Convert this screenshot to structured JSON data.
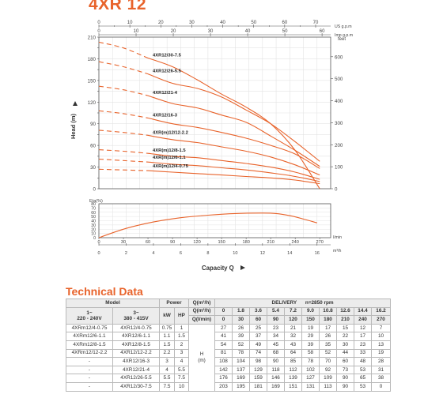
{
  "page_title": "4XR 12",
  "chart_data": [
    {
      "type": "line",
      "ylabel": "Head (m)",
      "ylim": [
        0,
        210
      ],
      "y_ticks": [
        0,
        15,
        30,
        45,
        60,
        75,
        90,
        105,
        120,
        135,
        150,
        165,
        180,
        195,
        210
      ],
      "y_labeled": [
        0,
        30,
        60,
        90,
        120,
        150,
        180,
        210
      ],
      "y2_label": "feet",
      "y2_ticks": [
        0,
        100,
        200,
        300,
        400,
        500,
        600
      ],
      "top_axis_us": {
        "label": "US g.p.m",
        "ticks": [
          0,
          10,
          20,
          30,
          40,
          50,
          60,
          70
        ]
      },
      "top_axis_imp": {
        "label": "Imp g.p.m",
        "ticks": [
          0,
          10,
          20,
          30,
          40,
          50,
          60
        ]
      },
      "xlim": [
        0,
        17
      ],
      "series": [
        {
          "name": "4XR12/30-7.5",
          "x": [
            0,
            1.8,
            3.6,
            5.4,
            7.2,
            9.0,
            10.8,
            12.6,
            14.4,
            16.2
          ],
          "values": [
            203,
            195,
            181,
            169,
            151,
            131,
            113,
            90,
            53,
            0
          ]
        },
        {
          "name": "4XR12/26-5.5",
          "x": [
            0,
            1.8,
            3.6,
            5.4,
            7.2,
            9.0,
            10.8,
            12.6,
            14.4,
            16.2
          ],
          "values": [
            176,
            169,
            159,
            146,
            139,
            127,
            109,
            90,
            65,
            38
          ]
        },
        {
          "name": "4XR12/21-4",
          "x": [
            0,
            1.8,
            3.6,
            5.4,
            7.2,
            9.0,
            10.8,
            12.6,
            14.4,
            16.2
          ],
          "values": [
            142,
            137,
            129,
            118,
            112,
            102,
            92,
            73,
            53,
            31
          ]
        },
        {
          "name": "4XR12/16-3",
          "x": [
            0,
            1.8,
            3.6,
            5.4,
            7.2,
            9.0,
            10.8,
            12.6,
            14.4,
            16.2
          ],
          "values": [
            108,
            104,
            98,
            90,
            85,
            78,
            70,
            60,
            48,
            28
          ]
        },
        {
          "name": "4XR(m)12/12-2.2",
          "x": [
            0,
            1.8,
            3.6,
            5.4,
            7.2,
            9.0,
            10.8,
            12.6,
            14.4,
            16.2
          ],
          "values": [
            81,
            78,
            74,
            68,
            64,
            58,
            52,
            44,
            33,
            19
          ]
        },
        {
          "name": "4XR(m)12/8-1.5",
          "x": [
            0,
            1.8,
            3.6,
            5.4,
            7.2,
            9.0,
            10.8,
            12.6,
            14.4,
            16.2
          ],
          "values": [
            54,
            52,
            49,
            45,
            43,
            39,
            35,
            30,
            23,
            13
          ]
        },
        {
          "name": "4XR(m)12/6-1.1",
          "x": [
            0,
            1.8,
            3.6,
            5.4,
            7.2,
            9.0,
            10.8,
            12.6,
            14.4,
            16.2
          ],
          "values": [
            41,
            39,
            37,
            34,
            32,
            29,
            26,
            22,
            17,
            10
          ]
        },
        {
          "name": "4XR(m)12/4-0.75",
          "x": [
            0,
            1.8,
            3.6,
            5.4,
            7.2,
            9.0,
            10.8,
            12.6,
            14.4,
            16.2
          ],
          "values": [
            27,
            26,
            25,
            23,
            21,
            19,
            17,
            15,
            12,
            7
          ]
        }
      ]
    },
    {
      "type": "line",
      "ylabel": "Eta(%)",
      "ylim": [
        0,
        80
      ],
      "y_ticks": [
        0,
        10,
        20,
        30,
        40,
        50,
        60,
        70,
        80
      ],
      "series": [
        {
          "name": "",
          "x": [
            0,
            2,
            4,
            6,
            8,
            10,
            12,
            13,
            14,
            15,
            16
          ],
          "values": [
            0,
            22,
            37,
            47,
            53,
            57,
            58,
            57,
            52,
            44,
            35
          ]
        }
      ],
      "x_lmin": {
        "label": "l/min",
        "ticks": [
          0,
          30,
          60,
          90,
          120,
          150,
          180,
          210,
          240,
          270
        ]
      },
      "x_m3h": {
        "label": "m³/h",
        "ticks": [
          0,
          2,
          4,
          6,
          8,
          10,
          12,
          14,
          16
        ]
      },
      "xlabel": "Capacity Q"
    }
  ],
  "table": {
    "title": "Technical Data",
    "h_model": "Model",
    "h_power": "Power",
    "h_delivery": "DELIVERY",
    "h_rpm": "n=2850 rpm",
    "h_1ph": "1~\n220 - 240V",
    "h_3ph": "3~\n380 - 415V",
    "h_kw": "kW",
    "h_hp": "HP",
    "h_q1": "Q(m³/h)",
    "h_q2": "Q(l/min)",
    "h_h": "H\n(m)",
    "q_m3h": [
      "0",
      "1.8",
      "3.6",
      "5.4",
      "7.2",
      "9.0",
      "10.8",
      "12.6",
      "14.4",
      "16.2"
    ],
    "q_lmin": [
      "0",
      "30",
      "60",
      "90",
      "120",
      "150",
      "180",
      "210",
      "240",
      "270"
    ],
    "rows": [
      {
        "m1": "4XRm12/4-0.75",
        "m3": "4XR12/4-0.75",
        "kw": "0.75",
        "hp": "1",
        "h": [
          "27",
          "26",
          "25",
          "23",
          "21",
          "19",
          "17",
          "15",
          "12",
          "7"
        ]
      },
      {
        "m1": "4XRm12/6-1.1",
        "m3": "4XR12/6-1.1",
        "kw": "1.1",
        "hp": "1.5",
        "h": [
          "41",
          "39",
          "37",
          "34",
          "32",
          "29",
          "26",
          "22",
          "17",
          "10"
        ]
      },
      {
        "m1": "4XRm12/8-1.5",
        "m3": "4XR12/8-1.5",
        "kw": "1.5",
        "hp": "2",
        "h": [
          "54",
          "52",
          "49",
          "45",
          "43",
          "39",
          "35",
          "30",
          "23",
          "13"
        ]
      },
      {
        "m1": "4XRm12/12-2.2",
        "m3": "4XR12/12-2.2",
        "kw": "2.2",
        "hp": "3",
        "h": [
          "81",
          "78",
          "74",
          "68",
          "64",
          "58",
          "52",
          "44",
          "33",
          "19"
        ]
      },
      {
        "m1": "-",
        "m3": "4XR12/16-3",
        "kw": "3",
        "hp": "4",
        "h": [
          "108",
          "104",
          "98",
          "90",
          "85",
          "78",
          "70",
          "60",
          "48",
          "28"
        ]
      },
      {
        "m1": "-",
        "m3": "4XR12/21-4",
        "kw": "4",
        "hp": "5.5",
        "h": [
          "142",
          "137",
          "129",
          "118",
          "112",
          "102",
          "92",
          "73",
          "53",
          "31"
        ]
      },
      {
        "m1": "-",
        "m3": "4XR12/26-5.5",
        "kw": "5.5",
        "hp": "7.5",
        "h": [
          "176",
          "169",
          "159",
          "146",
          "139",
          "127",
          "109",
          "90",
          "65",
          "38"
        ]
      },
      {
        "m1": "-",
        "m3": "4XR12/30-7.5",
        "kw": "7.5",
        "hp": "10",
        "h": [
          "203",
          "195",
          "181",
          "169",
          "151",
          "131",
          "113",
          "90",
          "53",
          "0"
        ]
      }
    ]
  },
  "colors": {
    "accent": "#e8632b",
    "curve": "#e8632b",
    "axis": "#555555"
  }
}
